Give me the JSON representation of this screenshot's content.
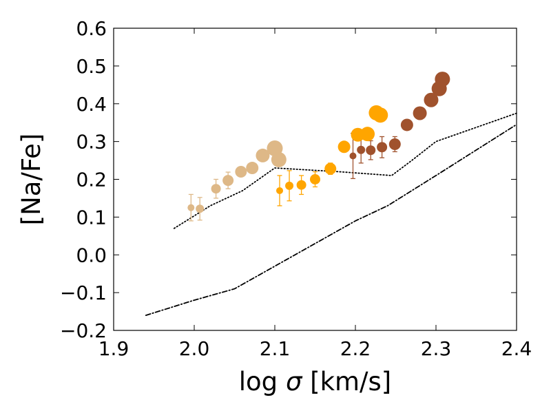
{
  "chart_data": {
    "type": "scatter",
    "title": "",
    "xlabel_text": "log ",
    "xlabel_symbol": "σ",
    "xlabel_unit": " [km/s]",
    "ylabel": "[Na/Fe]",
    "xlim": [
      1.9,
      2.4
    ],
    "ylim": [
      -0.2,
      0.6
    ],
    "xticks": [
      1.9,
      2.0,
      2.1,
      2.2,
      2.3,
      2.4
    ],
    "xtick_labels": [
      "1.9",
      "2.0",
      "2.1",
      "2.2",
      "2.3",
      "2.4"
    ],
    "yticks": [
      -0.2,
      -0.1,
      0.0,
      0.1,
      0.2,
      0.3,
      0.4,
      0.5,
      0.6
    ],
    "ytick_labels": [
      "−0.2",
      "−0.1",
      "0.0",
      "0.1",
      "0.2",
      "0.3",
      "0.4",
      "0.5",
      "0.6"
    ],
    "grid": false,
    "lines": [
      {
        "name": "dotted-model",
        "style": "dotted",
        "color": "#000000",
        "points": [
          [
            1.975,
            0.07
          ],
          [
            2.02,
            0.13
          ],
          [
            2.06,
            0.17
          ],
          [
            2.1,
            0.23
          ],
          [
            2.14,
            0.225
          ],
          [
            2.18,
            0.22
          ],
          [
            2.245,
            0.21
          ],
          [
            2.27,
            0.25
          ],
          [
            2.3,
            0.3
          ],
          [
            2.4,
            0.375
          ]
        ]
      },
      {
        "name": "dashdot-model",
        "style": "dashdot",
        "color": "#000000",
        "points": [
          [
            1.94,
            -0.16
          ],
          [
            2.0,
            -0.12
          ],
          [
            2.05,
            -0.09
          ],
          [
            2.1,
            -0.03
          ],
          [
            2.15,
            0.03
          ],
          [
            2.2,
            0.09
          ],
          [
            2.24,
            0.13
          ],
          [
            2.3,
            0.21
          ],
          [
            2.4,
            0.345
          ]
        ]
      }
    ],
    "series": [
      {
        "name": "tan-large",
        "color": "#DEB887",
        "points": [
          {
            "x": 2.027,
            "y": 0.175,
            "err": 0.025,
            "size": 14
          },
          {
            "x": 2.042,
            "y": 0.197,
            "err": 0.022,
            "size": 16
          },
          {
            "x": 2.058,
            "y": 0.22,
            "err": 0,
            "size": 17
          },
          {
            "x": 2.072,
            "y": 0.23,
            "err": 0,
            "size": 18
          },
          {
            "x": 2.085,
            "y": 0.263,
            "err": 0,
            "size": 20
          },
          {
            "x": 2.1,
            "y": 0.282,
            "err": 0,
            "size": 23
          },
          {
            "x": 2.105,
            "y": 0.252,
            "err": 0,
            "size": 22
          }
        ]
      },
      {
        "name": "tan-small",
        "color": "#DEB887",
        "points": [
          {
            "x": 1.996,
            "y": 0.125,
            "err": 0.035,
            "size": 10
          },
          {
            "x": 2.007,
            "y": 0.122,
            "err": 0.03,
            "size": 12
          }
        ]
      },
      {
        "name": "orange-small",
        "color": "#FFA500",
        "points": [
          {
            "x": 2.106,
            "y": 0.17,
            "err": 0.04,
            "size": 10
          },
          {
            "x": 2.118,
            "y": 0.183,
            "err": 0.04,
            "size": 12
          },
          {
            "x": 2.133,
            "y": 0.185,
            "err": 0.025,
            "size": 14
          },
          {
            "x": 2.15,
            "y": 0.2,
            "err": 0.02,
            "size": 15
          },
          {
            "x": 2.169,
            "y": 0.228,
            "err": 0.015,
            "size": 17
          }
        ]
      },
      {
        "name": "orange-large",
        "color": "#FFA500",
        "points": [
          {
            "x": 2.186,
            "y": 0.286,
            "err": 0,
            "size": 18
          },
          {
            "x": 2.203,
            "y": 0.318,
            "err": 0,
            "size": 20
          },
          {
            "x": 2.215,
            "y": 0.32,
            "err": 0,
            "size": 21
          },
          {
            "x": 2.226,
            "y": 0.376,
            "err": 0,
            "size": 22
          },
          {
            "x": 2.231,
            "y": 0.37,
            "err": 0,
            "size": 22
          }
        ]
      },
      {
        "name": "brown-small",
        "color": "#A0522D",
        "points": [
          {
            "x": 2.197,
            "y": 0.262,
            "err": 0.06,
            "size": 10
          },
          {
            "x": 2.207,
            "y": 0.278,
            "err": 0.035,
            "size": 12
          },
          {
            "x": 2.219,
            "y": 0.277,
            "err": 0.025,
            "size": 14
          },
          {
            "x": 2.233,
            "y": 0.285,
            "err": 0.028,
            "size": 15
          },
          {
            "x": 2.249,
            "y": 0.293,
            "err": 0.02,
            "size": 17
          }
        ]
      },
      {
        "name": "brown-large",
        "color": "#A0522D",
        "points": [
          {
            "x": 2.264,
            "y": 0.344,
            "err": 0,
            "size": 18
          },
          {
            "x": 2.28,
            "y": 0.375,
            "err": 0,
            "size": 20
          },
          {
            "x": 2.294,
            "y": 0.41,
            "err": 0,
            "size": 21
          },
          {
            "x": 2.304,
            "y": 0.44,
            "err": 0,
            "size": 22
          },
          {
            "x": 2.308,
            "y": 0.465,
            "err": 0,
            "size": 22
          }
        ]
      }
    ]
  }
}
